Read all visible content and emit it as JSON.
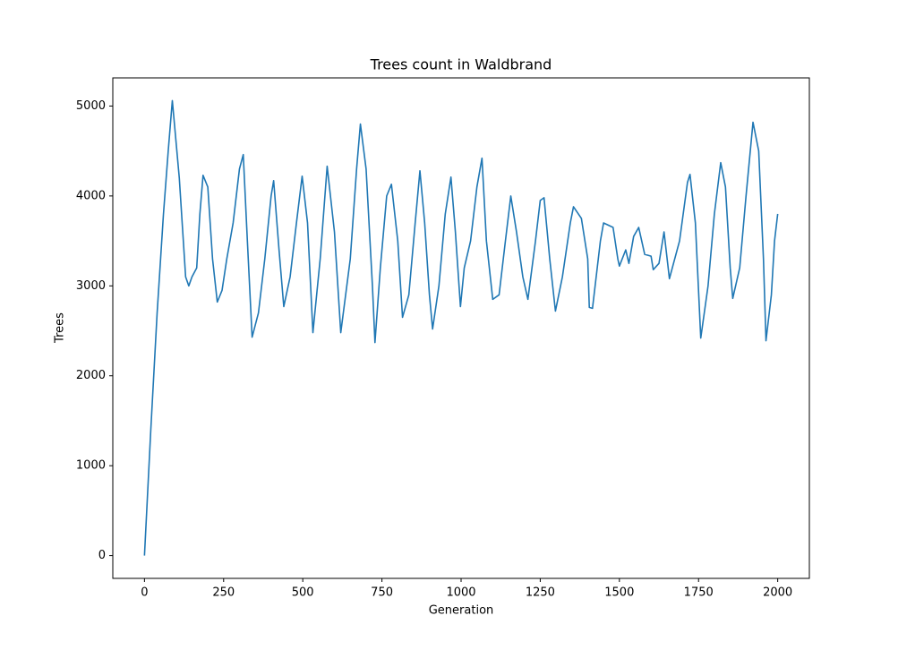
{
  "chart_data": {
    "type": "line",
    "title": "Trees count in Waldbrand",
    "x_label": "Generation",
    "y_label": "Trees",
    "x": [
      0,
      20,
      40,
      60,
      75,
      88,
      110,
      130,
      140,
      150,
      165,
      175,
      185,
      200,
      215,
      230,
      245,
      260,
      280,
      300,
      312,
      325,
      340,
      360,
      380,
      400,
      408,
      425,
      440,
      460,
      480,
      498,
      515,
      532,
      555,
      577,
      600,
      620,
      650,
      670,
      682,
      700,
      720,
      728,
      745,
      765,
      780,
      800,
      815,
      835,
      855,
      870,
      885,
      900,
      910,
      930,
      950,
      968,
      982,
      998,
      1010,
      1030,
      1050,
      1066,
      1080,
      1100,
      1120,
      1140,
      1157,
      1175,
      1195,
      1211,
      1235,
      1250,
      1262,
      1280,
      1298,
      1320,
      1345,
      1355,
      1380,
      1400,
      1405,
      1415,
      1440,
      1450,
      1480,
      1495,
      1500,
      1520,
      1530,
      1545,
      1561,
      1580,
      1600,
      1607,
      1625,
      1641,
      1658,
      1690,
      1715,
      1723,
      1740,
      1757,
      1780,
      1800,
      1820,
      1835,
      1850,
      1858,
      1880,
      1900,
      1922,
      1940,
      1955,
      1963,
      1980,
      1990,
      2000
    ],
    "series": [
      {
        "name": "Trees",
        "color": "#1f77b4",
        "values": [
          0,
          1400,
          2700,
          3800,
          4500,
          5060,
          4200,
          3100,
          3000,
          3100,
          3200,
          3800,
          4230,
          4100,
          3300,
          2820,
          2950,
          3300,
          3700,
          4300,
          4460,
          3500,
          2430,
          2700,
          3300,
          4000,
          4170,
          3400,
          2770,
          3100,
          3700,
          4220,
          3700,
          2480,
          3300,
          4330,
          3600,
          2480,
          3300,
          4300,
          4800,
          4300,
          3000,
          2370,
          3200,
          4000,
          4130,
          3500,
          2650,
          2900,
          3700,
          4280,
          3700,
          2900,
          2520,
          3000,
          3800,
          4210,
          3600,
          2770,
          3200,
          3500,
          4100,
          4420,
          3500,
          2850,
          2900,
          3500,
          4000,
          3600,
          3100,
          2850,
          3500,
          3950,
          3980,
          3300,
          2720,
          3100,
          3700,
          3880,
          3750,
          3300,
          2760,
          2750,
          3500,
          3700,
          3650,
          3300,
          3220,
          3400,
          3250,
          3550,
          3650,
          3350,
          3330,
          3180,
          3250,
          3600,
          3080,
          3500,
          4150,
          4240,
          3700,
          2420,
          3000,
          3800,
          4370,
          4100,
          3200,
          2860,
          3200,
          4000,
          4820,
          4500,
          3300,
          2390,
          2900,
          3500,
          3800
        ]
      }
    ],
    "xlim": [
      -100,
      2100
    ],
    "xticks": [
      0,
      250,
      500,
      750,
      1000,
      1250,
      1500,
      1750,
      2000
    ],
    "ylim": [
      -253,
      5313
    ],
    "yticks": [
      0,
      1000,
      2000,
      3000,
      4000,
      5000
    ]
  }
}
